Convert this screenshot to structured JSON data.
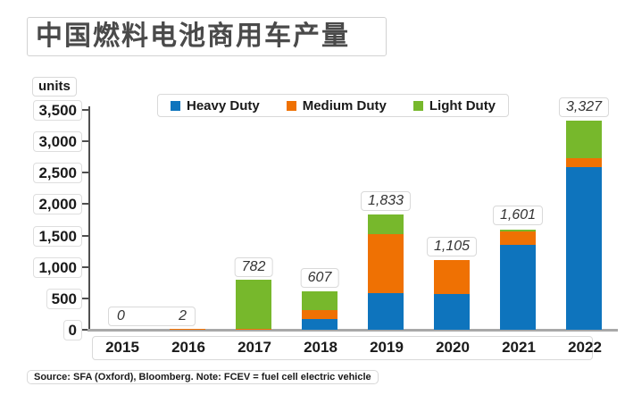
{
  "title": "中国燃料电池商用车产量",
  "y_axis": {
    "unit_label": "units",
    "ticks": [
      "3,500",
      "3,000",
      "2,500",
      "2,000",
      "1,500",
      "1,000",
      "500",
      "0"
    ]
  },
  "source_note": "Source: SFA (Oxford), Bloomberg. Note: FCEV = fuel cell electric vehicle",
  "chart_data": {
    "type": "bar",
    "stacked": true,
    "title": "中国燃料电池商用车产量",
    "ylabel": "units",
    "xlabel": "",
    "ylim": [
      0,
      3500
    ],
    "grid": false,
    "legend_position": "top",
    "categories": [
      "2015",
      "2016",
      "2017",
      "2018",
      "2019",
      "2020",
      "2021",
      "2022"
    ],
    "series": [
      {
        "name": "Heavy Duty",
        "color": "#0e74bd",
        "values": [
          0,
          0,
          0,
          170,
          577,
          570,
          1350,
          2590
        ]
      },
      {
        "name": "Medium Duty",
        "color": "#ef7103",
        "values": [
          0,
          2,
          10,
          140,
          946,
          535,
          220,
          140
        ]
      },
      {
        "name": "Light Duty",
        "color": "#77b82c",
        "values": [
          0,
          0,
          772,
          297,
          310,
          0,
          31,
          597
        ]
      }
    ],
    "totals": [
      0,
      2,
      782,
      607,
      1833,
      1105,
      1601,
      3327
    ],
    "total_labels": [
      "0",
      "2",
      "782",
      "607",
      "1,833",
      "1,105",
      "1,601",
      "3,327"
    ],
    "colors": {
      "axis_line_v": "#4f4f4f",
      "axis_line_h": "#a9a9a9",
      "label_border": "#d9d9d9"
    }
  }
}
